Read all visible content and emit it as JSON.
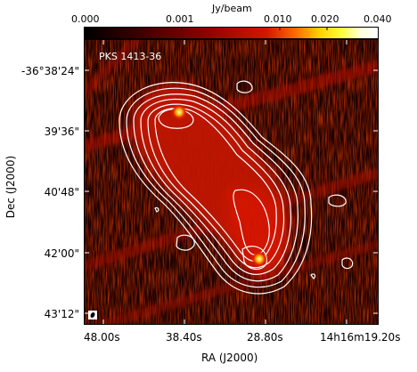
{
  "colorbar": {
    "unit": "Jy/beam",
    "tick_labels": [
      "0.000",
      "0.001",
      "0.010",
      "0.020",
      "0.040"
    ]
  },
  "plot": {
    "source_name": "PKS 1413-36",
    "x_axis_title": "RA (J2000)",
    "y_axis_title": "Dec (J2000)",
    "x_tick_labels": [
      "48.00s",
      "38.40s",
      "28.80s",
      "14h16m19.20s"
    ],
    "y_tick_labels": [
      "-36°38'24\"",
      "39'36\"",
      "40'48\"",
      "42'00\"",
      "43'12\""
    ],
    "colors": {
      "background": "#120000",
      "emission": "#c81400",
      "contours": "#ffffff",
      "hotspot": "#fff0a0"
    }
  }
}
